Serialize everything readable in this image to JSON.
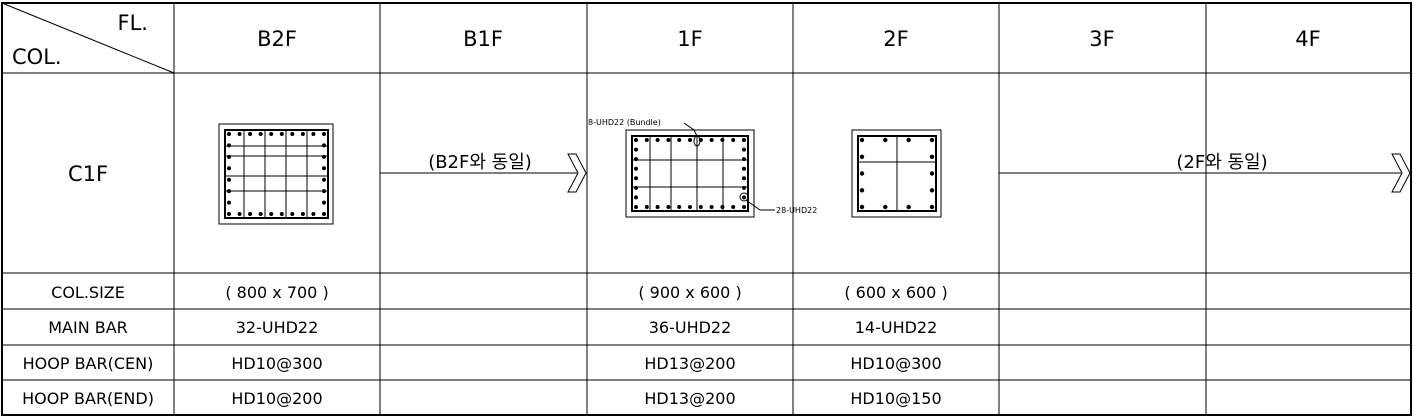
{
  "header": {
    "corner_fl": "FL.",
    "corner_col": "COL.",
    "floors": [
      "B2F",
      "B1F",
      "1F",
      "2F",
      "3F",
      "4F"
    ]
  },
  "column_mark": "C1F",
  "same_as": {
    "b1f": "(B2F와 동일)",
    "upper": "(2F와 동일)"
  },
  "annotations": {
    "bundle": "8-UHD22 (Bundle)",
    "corner": "28-UHD22"
  },
  "rows": [
    {
      "label": "COL.SIZE",
      "values": [
        "( 800 x 700 )",
        "",
        "( 900 x 600 )",
        "( 600 x 600 )",
        "",
        ""
      ]
    },
    {
      "label": "MAIN BAR",
      "values": [
        "32-UHD22",
        "",
        "36-UHD22",
        "14-UHD22",
        "",
        ""
      ]
    },
    {
      "label": "HOOP BAR(CEN)",
      "values": [
        "HD10@300",
        "",
        "HD13@200",
        "HD10@300",
        "",
        ""
      ]
    },
    {
      "label": "HOOP BAR(END)",
      "values": [
        "HD10@200",
        "",
        "HD13@200",
        "HD10@150",
        "",
        ""
      ]
    }
  ]
}
